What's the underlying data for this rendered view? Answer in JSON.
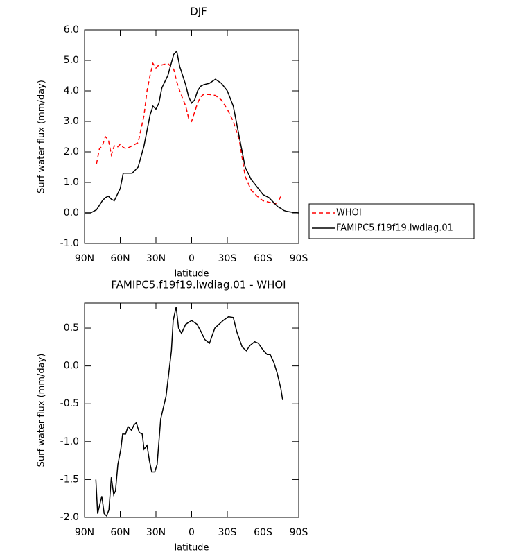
{
  "chart_data": [
    {
      "type": "line",
      "title": "DJF",
      "x_label": "latitude",
      "y_label": "Surf water flux (mm/day)",
      "x": [
        90,
        85,
        80,
        77.5,
        75,
        72.5,
        70,
        67.5,
        65,
        62.5,
        60,
        57.5,
        55,
        50,
        45,
        40,
        37.5,
        35,
        32.5,
        30,
        27.5,
        25,
        20,
        15,
        12.5,
        10,
        5,
        2.5,
        0,
        -2.5,
        -5,
        -7.5,
        -10,
        -15,
        -20,
        -25,
        -30,
        -35,
        -40,
        -45,
        -50,
        -55,
        -60,
        -65,
        -70,
        -72.5,
        -75,
        -77.5,
        -80,
        -85,
        -90
      ],
      "series": [
        {
          "name": "WHOI",
          "color": "#ff0000",
          "dash": "dashed",
          "values": [
            null,
            null,
            1.6,
            2.1,
            2.2,
            2.5,
            2.4,
            1.9,
            2.2,
            2.15,
            2.25,
            2.15,
            2.1,
            2.2,
            2.3,
            3.2,
            4.0,
            4.5,
            4.9,
            4.75,
            4.85,
            4.85,
            4.9,
            4.7,
            4.3,
            4.0,
            3.5,
            3.1,
            3.0,
            3.3,
            3.6,
            3.8,
            3.88,
            3.88,
            3.85,
            3.7,
            3.4,
            3.0,
            2.4,
            1.2,
            0.75,
            0.55,
            0.4,
            0.35,
            0.3,
            0.35,
            0.55,
            null,
            null,
            null,
            null
          ]
        },
        {
          "name": "FAMIPC5.f19f19.lwdiag.01",
          "color": "#000000",
          "dash": "solid",
          "values": [
            0,
            0,
            0.1,
            0.25,
            0.4,
            0.5,
            0.55,
            0.45,
            0.4,
            0.6,
            0.8,
            1.3,
            1.3,
            1.3,
            1.5,
            2.2,
            2.7,
            3.2,
            3.5,
            3.4,
            3.6,
            4.1,
            4.5,
            5.2,
            5.3,
            4.8,
            4.2,
            3.8,
            3.6,
            3.7,
            4.0,
            4.15,
            4.2,
            4.25,
            4.38,
            4.25,
            4.0,
            3.5,
            2.5,
            1.5,
            1.1,
            0.85,
            0.6,
            0.5,
            0.3,
            0.2,
            0.15,
            0.08,
            0.05,
            0.02,
            0
          ]
        }
      ],
      "xlim": [
        90,
        -90
      ],
      "xticks": [
        {
          "value": 90,
          "label": "90N"
        },
        {
          "value": 60,
          "label": "60N"
        },
        {
          "value": 30,
          "label": "30N"
        },
        0,
        {
          "value": -30,
          "label": "30S"
        },
        {
          "value": -60,
          "label": "60S"
        },
        {
          "value": -90,
          "label": "90S"
        }
      ],
      "ylim": [
        -1,
        6
      ],
      "yticks": [
        {
          "value": -1,
          "label": "-1.0"
        },
        {
          "value": 0,
          "label": "0.0"
        },
        {
          "value": 1,
          "label": "1.0"
        },
        {
          "value": 2,
          "label": "2.0"
        },
        {
          "value": 3,
          "label": "3.0"
        },
        {
          "value": 4,
          "label": "4.0"
        },
        {
          "value": 5,
          "label": "5.0"
        },
        {
          "value": 6,
          "label": "6.0"
        }
      ],
      "legend": "right"
    },
    {
      "type": "line",
      "title": "FAMIPC5.f19f19.lwdiag.01 - WHOI",
      "x_label": "latitude",
      "y_label": "Surf water flux (mm/day)",
      "x": [
        80.5,
        79,
        75.5,
        73.5,
        71.5,
        69.5,
        67.5,
        65.5,
        64,
        62,
        59.5,
        58,
        55.5,
        53.5,
        50.5,
        48.5,
        46.5,
        44,
        41.5,
        40,
        37.5,
        35.5,
        33.5,
        31,
        29,
        26,
        21.5,
        17,
        15.5,
        13,
        11,
        8.5,
        5,
        0,
        -4.5,
        -8,
        -11,
        -15,
        -19.5,
        -23,
        -26.5,
        -31,
        -35,
        -38,
        -42.5,
        -46,
        -49,
        -53,
        -56,
        -60.5,
        -63.5,
        -66,
        -69,
        -72,
        -75,
        -76.5
      ],
      "series": [
        {
          "color": "#000000",
          "dash": "solid",
          "values": [
            -1.5,
            -1.95,
            -1.72,
            -1.95,
            -1.98,
            -1.9,
            -1.47,
            -1.7,
            -1.65,
            -1.3,
            -1.1,
            -0.9,
            -0.9,
            -0.8,
            -0.85,
            -0.78,
            -0.75,
            -0.88,
            -0.9,
            -1.1,
            -1.05,
            -1.25,
            -1.4,
            -1.4,
            -1.3,
            -0.7,
            -0.4,
            0.2,
            0.6,
            0.78,
            0.5,
            0.43,
            0.55,
            0.6,
            0.55,
            0.45,
            0.35,
            0.3,
            0.5,
            0.55,
            0.6,
            0.65,
            0.64,
            0.45,
            0.25,
            0.2,
            0.27,
            0.32,
            0.3,
            0.2,
            0.15,
            0.15,
            0.05,
            -0.1,
            -0.3,
            -0.45
          ]
        }
      ],
      "xlim": [
        90,
        -90
      ],
      "xticks": [
        {
          "value": 90,
          "label": "90N"
        },
        {
          "value": 60,
          "label": "60N"
        },
        {
          "value": 30,
          "label": "30N"
        },
        0,
        {
          "value": -30,
          "label": "30S"
        },
        {
          "value": -60,
          "label": "60S"
        },
        {
          "value": -90,
          "label": "90S"
        }
      ],
      "ylim": [
        -2,
        0.83
      ],
      "yticks": [
        0.5,
        {
          "value": 0,
          "label": "0.0"
        },
        -0.5,
        {
          "value": -1,
          "label": "-1.0"
        },
        -1.5,
        {
          "value": -2,
          "label": "-2.0"
        }
      ]
    }
  ]
}
